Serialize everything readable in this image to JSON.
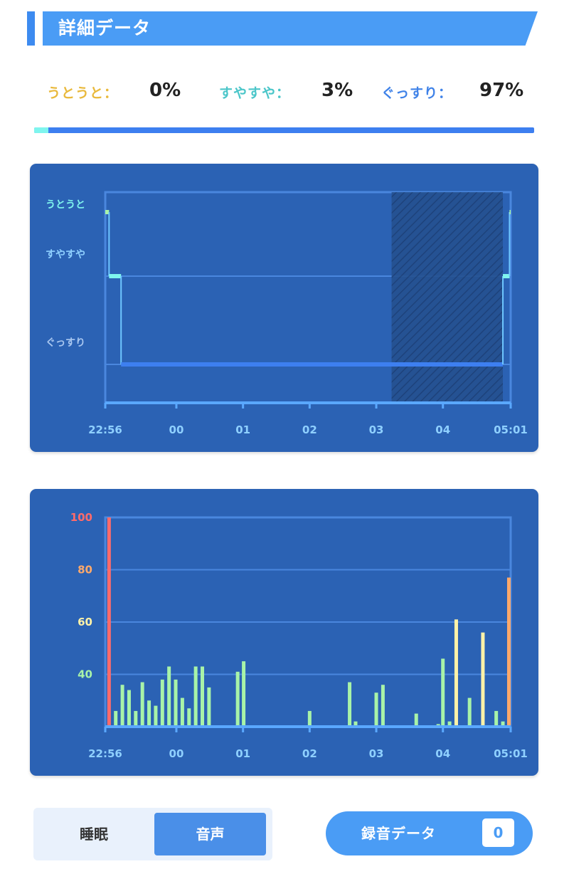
{
  "header": {
    "title": "詳細データ"
  },
  "summary": {
    "items": [
      {
        "label": "うとうと：",
        "value": "0%",
        "color": "#e9b93c"
      },
      {
        "label": "すやすや：",
        "value": "3%",
        "color": "#4bc6c9"
      },
      {
        "label": "ぐっすり：",
        "value": "97%",
        "color": "#3f82e8"
      }
    ],
    "distribution": {
      "light": 0,
      "medium": 3,
      "deep": 97
    }
  },
  "chart_data": [
    {
      "type": "line",
      "name": "sleep-stage",
      "y_levels": [
        "うとうと",
        "すやすや",
        "ぐっすり"
      ],
      "x_ticks": [
        "22:56",
        "00",
        "01",
        "02",
        "03",
        "04",
        "05:01"
      ],
      "x_tick_hours": [
        22.933,
        24,
        25,
        26,
        27,
        28,
        29.017
      ],
      "x_range": [
        22.933,
        29.017
      ],
      "stage_steps": [
        {
          "t": 22.933,
          "level": "うとうと"
        },
        {
          "t": 22.99,
          "level": "すやすや"
        },
        {
          "t": 23.17,
          "level": "ぐっすり"
        },
        {
          "t": 28.9,
          "level": "すやすや"
        },
        {
          "t": 29.0,
          "level": "うとうと"
        }
      ],
      "shaded_range": [
        27.23,
        28.9
      ],
      "colors": {
        "light": "#a8f3a8",
        "medium": "#7ff5ee",
        "deep": "#3d7ff0"
      }
    },
    {
      "type": "bar",
      "name": "sound-level",
      "y_ticks": [
        {
          "value": 100,
          "label": "100",
          "color": "#ff6b6b"
        },
        {
          "value": 80,
          "label": "80",
          "color": "#ffa96b"
        },
        {
          "value": 60,
          "label": "60",
          "color": "#fff2a8"
        },
        {
          "value": 40,
          "label": "40",
          "color": "#a8f3a8"
        }
      ],
      "ylim": [
        20,
        100
      ],
      "x_ticks": [
        "22:56",
        "00",
        "01",
        "02",
        "03",
        "04",
        "05:01"
      ],
      "x_tick_hours": [
        22.933,
        24,
        25,
        26,
        27,
        28,
        29.017
      ],
      "x_range": [
        22.933,
        29.017
      ],
      "bars": [
        {
          "t": 22.99,
          "v": 100
        },
        {
          "t": 23.09,
          "v": 26
        },
        {
          "t": 23.19,
          "v": 36
        },
        {
          "t": 23.29,
          "v": 34
        },
        {
          "t": 23.39,
          "v": 26
        },
        {
          "t": 23.49,
          "v": 37
        },
        {
          "t": 23.59,
          "v": 30
        },
        {
          "t": 23.69,
          "v": 28
        },
        {
          "t": 23.79,
          "v": 38
        },
        {
          "t": 23.89,
          "v": 43
        },
        {
          "t": 23.99,
          "v": 38
        },
        {
          "t": 24.09,
          "v": 31
        },
        {
          "t": 24.19,
          "v": 27
        },
        {
          "t": 24.29,
          "v": 43
        },
        {
          "t": 24.39,
          "v": 43
        },
        {
          "t": 24.49,
          "v": 35
        },
        {
          "t": 24.92,
          "v": 41
        },
        {
          "t": 25.01,
          "v": 45
        },
        {
          "t": 26.0,
          "v": 26
        },
        {
          "t": 26.6,
          "v": 37
        },
        {
          "t": 26.69,
          "v": 22
        },
        {
          "t": 27.0,
          "v": 33
        },
        {
          "t": 27.1,
          "v": 36
        },
        {
          "t": 27.6,
          "v": 25
        },
        {
          "t": 27.93,
          "v": 21
        },
        {
          "t": 28.0,
          "v": 46
        },
        {
          "t": 28.1,
          "v": 22
        },
        {
          "t": 28.2,
          "v": 61
        },
        {
          "t": 28.4,
          "v": 31
        },
        {
          "t": 28.6,
          "v": 56
        },
        {
          "t": 28.8,
          "v": 26
        },
        {
          "t": 28.9,
          "v": 22
        },
        {
          "t": 28.99,
          "v": 77
        }
      ],
      "bar_colors": {
        "low": "#a8f3a8",
        "mid": "#fff2a8",
        "high": "#ffa96b",
        "max": "#ff6b6b"
      }
    }
  ],
  "controls": {
    "toggle": {
      "sleep_label": "睡眠",
      "voice_label": "音声",
      "selected": "音声"
    },
    "recording": {
      "label": "録音データ",
      "count": "0"
    }
  }
}
